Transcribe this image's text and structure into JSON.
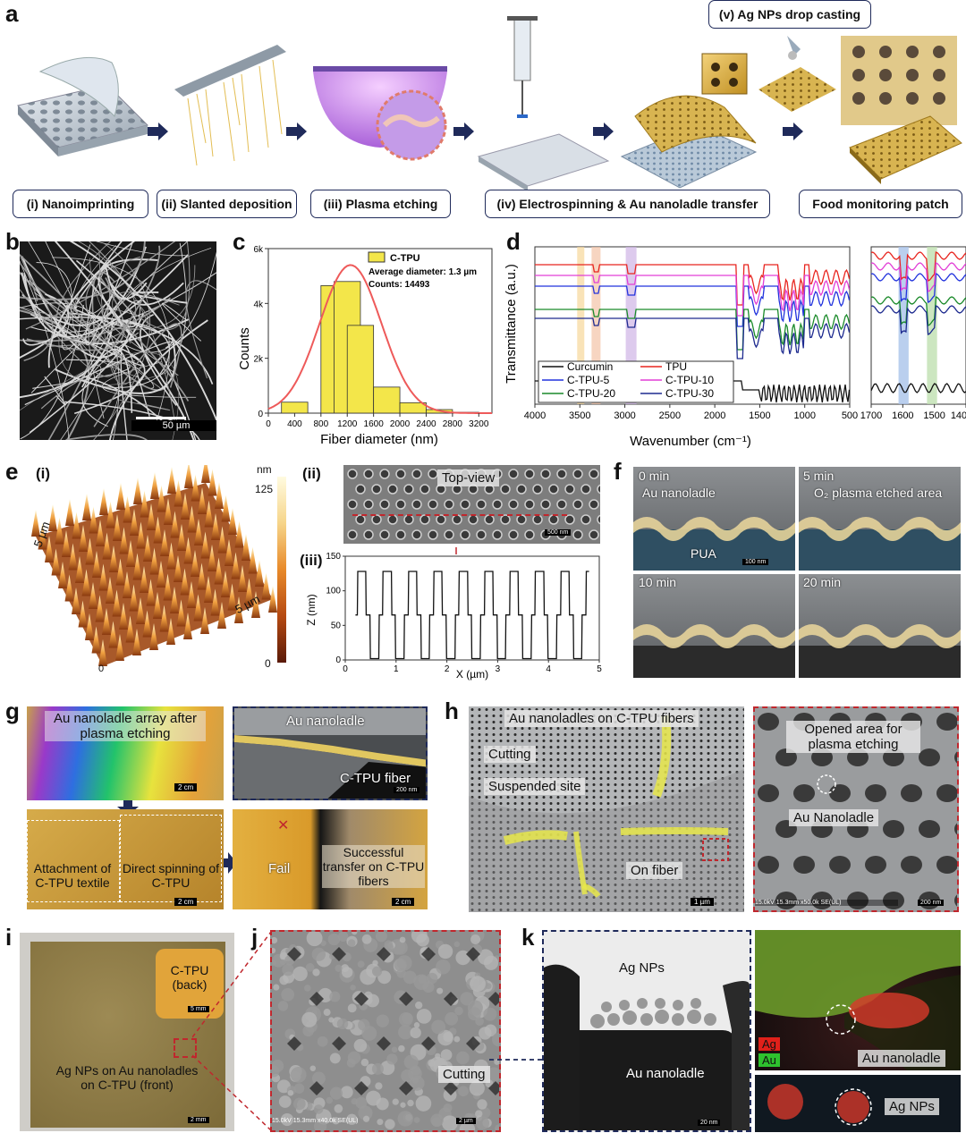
{
  "panel_letters": {
    "a": "a",
    "b": "b",
    "c": "c",
    "d": "d",
    "e": "e",
    "f": "f",
    "g": "g",
    "h": "h",
    "i": "i",
    "j": "j",
    "k": "k"
  },
  "panel_a": {
    "step_v": "(v) Ag NPs drop casting",
    "steps": [
      "(i) Nanoimprinting",
      "(ii) Slanted deposition",
      "(iii) Plasma etching",
      "(iv) Electrospinning & Au nanoladle transfer",
      "Food monitoring patch"
    ]
  },
  "panel_b": {
    "scale": "50 µm"
  },
  "panel_c": {
    "chart_data": {
      "type": "bar",
      "xlabel": "Fiber diameter (nm)",
      "ylabel": "Counts",
      "x_ticks": [
        "0",
        "400",
        "800",
        "1200",
        "1600",
        "2000",
        "2400",
        "2800",
        "3200"
      ],
      "y_ticks": [
        "0",
        "2k",
        "4k",
        "6k"
      ],
      "xlim": [
        0,
        3400
      ],
      "ylim": [
        0,
        6000
      ],
      "bin_width": 200,
      "bin_centers": [
        400,
        800,
        1000,
        1200,
        1400,
        1600,
        1800,
        2000,
        2200,
        2400,
        2600,
        2800,
        3000,
        3200
      ],
      "values": [
        400,
        0,
        4650,
        4800,
        3200,
        0,
        950,
        0,
        380,
        0,
        130,
        0,
        30,
        0
      ],
      "legend": {
        "name": "C-TPU",
        "line1": "Average diameter: 1.3 µm",
        "line2": "Counts: 14493"
      },
      "fit": "gaussian",
      "bar_color": "#f3e64a",
      "fit_color": "#ee5a5a"
    }
  },
  "panel_d": {
    "chart_data": {
      "type": "line",
      "xlabel": "Wavenumber (cm⁻¹)",
      "ylabel": "Transmittance (a.u.)",
      "x_ticks_main": [
        "4000",
        "3500",
        "3000",
        "2500",
        "2000",
        "1500",
        "1000",
        "500"
      ],
      "x_ticks_inset": [
        "1700",
        "1600",
        "1500",
        "140"
      ],
      "series": [
        {
          "name": "Curcumin",
          "color": "#111111"
        },
        {
          "name": "TPU",
          "color": "#e8251f"
        },
        {
          "name": "C-TPU-5",
          "color": "#2233dd"
        },
        {
          "name": "C-TPU-10",
          "color": "#e23fd6"
        },
        {
          "name": "C-TPU-20",
          "color": "#1a8a2a"
        },
        {
          "name": "C-TPU-30",
          "color": "#1d2a8f"
        }
      ]
    }
  },
  "panel_e": {
    "sub_i": "(i)",
    "sub_ii": "(ii)",
    "sub_iii": "(iii)",
    "axis_5um_a": "5 µm",
    "axis_5um_b": "5 µm",
    "axis_0": "0",
    "cbar_unit": "nm",
    "cbar_max": "125",
    "cbar_min": "0",
    "topview": "Top-view",
    "scale": "500 nm",
    "profile": {
      "type": "line",
      "xlabel": "X (µm)",
      "ylabel": "Z (nm)",
      "x_ticks": [
        "0",
        "1",
        "2",
        "3",
        "4",
        "5"
      ],
      "y_ticks": [
        "0",
        "50",
        "100",
        "150"
      ],
      "xlim": [
        0,
        5
      ],
      "ylim": [
        0,
        150
      ]
    }
  },
  "panel_f": {
    "t0": "0 min",
    "t5": "5 min",
    "t10": "10 min",
    "t20": "20 min",
    "au": "Au nanoladle",
    "etched": "O₂ plasma etched area",
    "pua": "PUA",
    "scale": "100 nm"
  },
  "panel_g": {
    "array": "Au nanoladle array after plasma etching",
    "au": "Au nanoladle",
    "fiber": "C-TPU fiber",
    "attach": "Attachment of C-TPU textile",
    "direct": "Direct spinning of C-TPU",
    "fail": "Fail",
    "success": "Successful transfer on C-TPU fibers",
    "scale_2cm": "2 cm",
    "scale_200": "200 nm"
  },
  "panel_h": {
    "title": "Au nanoladles on C-TPU fibers",
    "cutting": "Cutting",
    "suspended": "Suspended site",
    "onfiber": "On fiber",
    "opened": "Opened area for plasma etching",
    "au": "Au Nanoladle",
    "scale_1um": "1 µm",
    "scale_200": "200 nm",
    "sem_info": "15.0kV 15.3mm x50.0k SE(UL)"
  },
  "panel_i": {
    "back": "C-TPU (back)",
    "front": "Ag NPs on Au nanoladles on C-TPU (front)",
    "scale_5mm": "5 mm",
    "scale_2mm": "2 mm"
  },
  "panel_j": {
    "cutting": "Cutting",
    "scale": "2 µm",
    "sem_info": "15.0kV 15.3mm x40.0k SE(UL)"
  },
  "panel_k": {
    "ag": "Ag NPs",
    "au": "Au nanoladle",
    "scale": "20 nm",
    "legend_ag": "Ag",
    "legend_au": "Au",
    "map_au": "Au nanoladle",
    "map_ag": "Ag NPs"
  }
}
